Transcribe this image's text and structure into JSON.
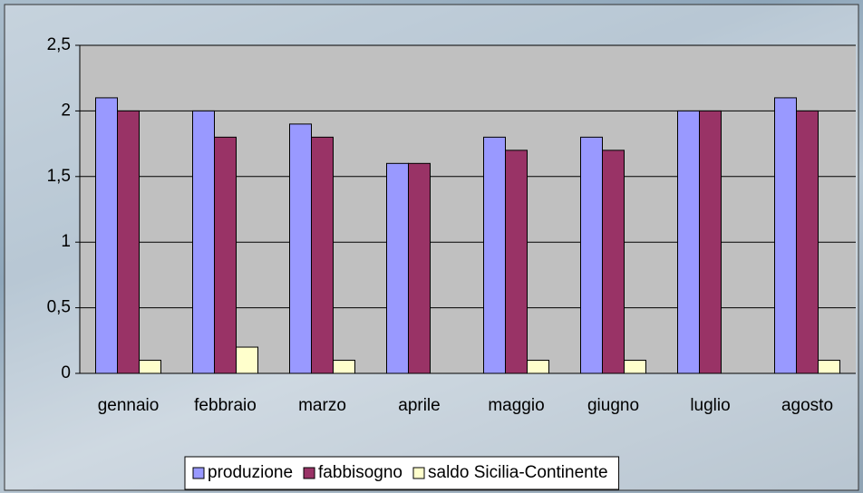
{
  "chart_data": {
    "type": "bar",
    "categories": [
      "gennaio",
      "febbraio",
      "marzo",
      "aprile",
      "maggio",
      "giugno",
      "luglio",
      "agosto"
    ],
    "series": [
      {
        "name": "produzione",
        "color": "#9999ff",
        "values": [
          2.1,
          2.0,
          1.9,
          1.6,
          1.8,
          1.8,
          2.0,
          2.1
        ]
      },
      {
        "name": "fabbisogno",
        "color": "#993366",
        "values": [
          2.0,
          1.8,
          1.8,
          1.6,
          1.7,
          1.7,
          2.0,
          2.0
        ]
      },
      {
        "name": "saldo Sicilia-Continente",
        "color": "#ffffcc",
        "values": [
          0.1,
          0.2,
          0.1,
          0,
          0.1,
          0.1,
          0,
          0.1
        ]
      }
    ],
    "ylim": [
      0,
      2.5
    ],
    "yticks": [
      0,
      {
        "value": 0.5,
        "label": "0,5"
      },
      1,
      {
        "value": 1.5,
        "label": "1,5"
      },
      2,
      {
        "value": 2.5,
        "label": "2,5"
      }
    ],
    "grid": true,
    "legend": "bottom"
  }
}
